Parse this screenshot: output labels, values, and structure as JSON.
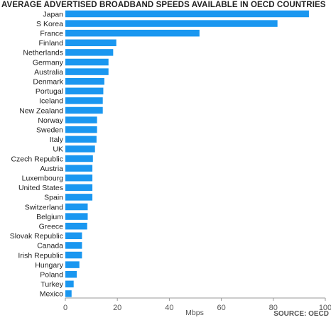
{
  "chart_data": {
    "type": "bar",
    "orientation": "horizontal",
    "title": "AVERAGE ADVERTISED BROADBAND SPEEDS AVAILABLE IN OECD COUNTRIES",
    "categories": [
      "Japan",
      "S Korea",
      "France",
      "Finland",
      "Netherlands",
      "Germany",
      "Australia",
      "Denmark",
      "Portugal",
      "Iceland",
      "New Zealand",
      "Norway",
      "Sweden",
      "Italy",
      "UK",
      "Czech Republic",
      "Austria",
      "Luxembourg",
      "United States",
      "Spain",
      "Switzerland",
      "Belgium",
      "Greece",
      "Slovak Republic",
      "Canada",
      "Irish Republic",
      "Hungary",
      "Poland",
      "Turkey",
      "Mexico"
    ],
    "values": [
      93.7,
      81.6,
      51.6,
      19.6,
      18.4,
      16.6,
      16.6,
      15.0,
      14.6,
      14.4,
      14.4,
      12.2,
      12.2,
      12.0,
      11.4,
      10.6,
      10.4,
      10.4,
      10.4,
      10.4,
      8.6,
      8.6,
      8.4,
      6.4,
      6.4,
      6.4,
      5.4,
      4.4,
      3.2,
      2.4
    ],
    "xlabel": "Mbps",
    "ylabel": "",
    "xlim": [
      0,
      100
    ],
    "xticks": [
      0,
      20,
      40,
      60,
      80,
      100
    ],
    "grid": false,
    "bar_color": "#1a97f0",
    "source": "SOURCE: OECD"
  }
}
